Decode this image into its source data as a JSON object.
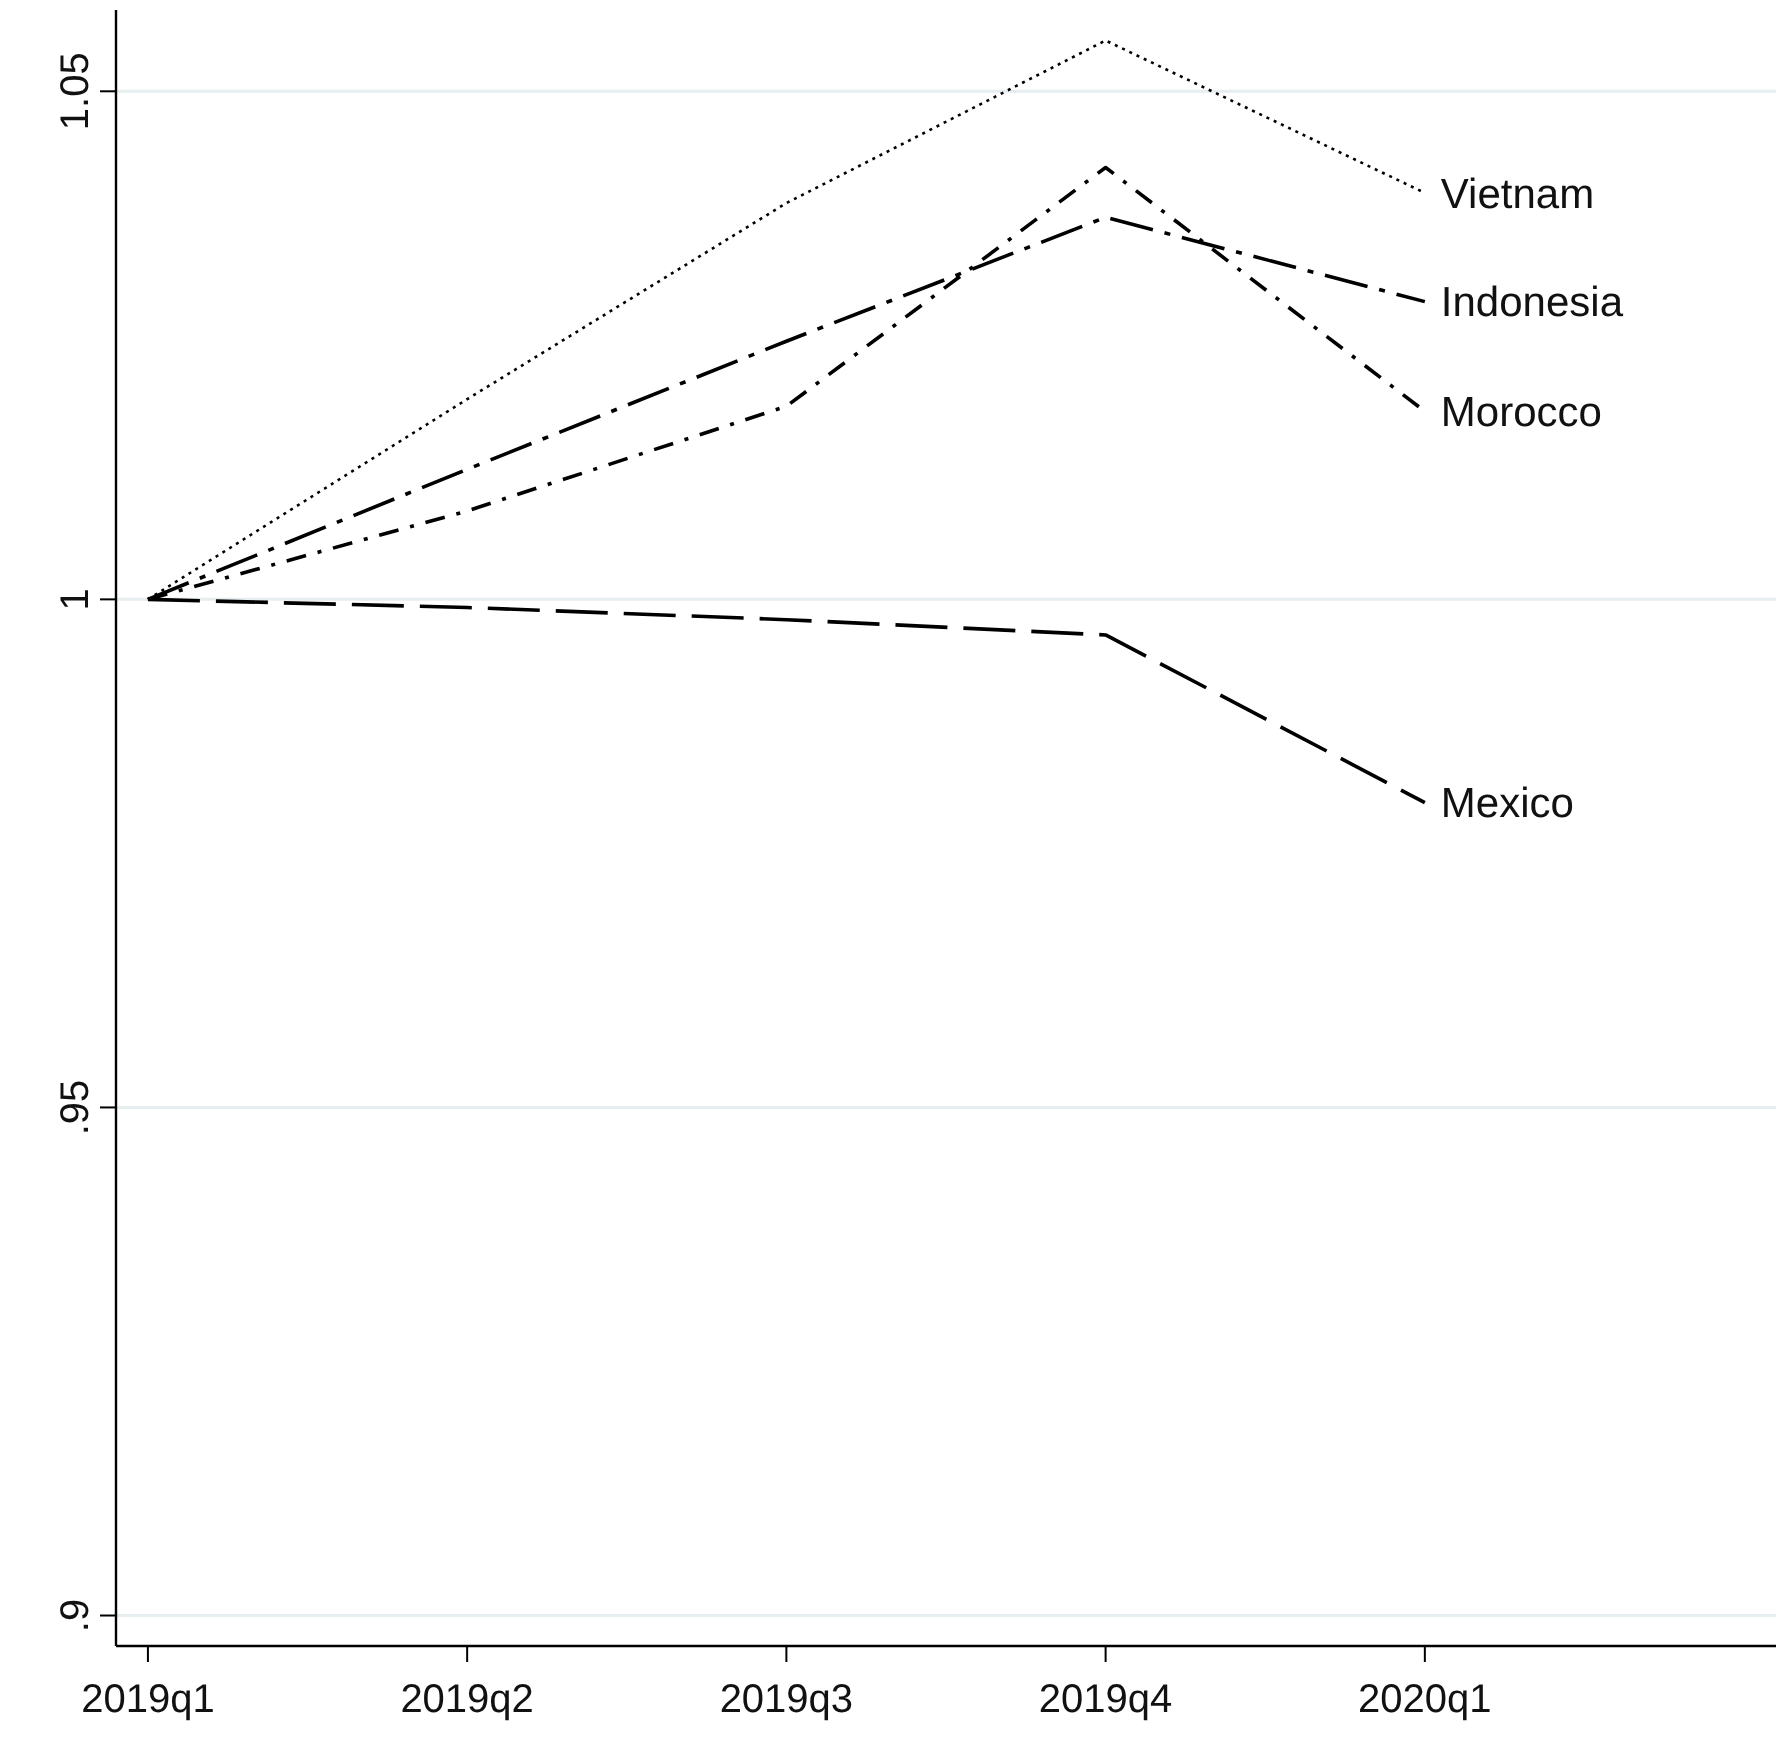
{
  "chart_data": {
    "type": "line",
    "categories": [
      "2019q1",
      "2019q2",
      "2019q3",
      "2019q4",
      "2020q1"
    ],
    "ylim": [
      0.897,
      1.058
    ],
    "yticks": [
      {
        "value": 0.9,
        "label": ".9"
      },
      {
        "value": 0.95,
        "label": ".95"
      },
      {
        "value": 1,
        "label": "1"
      },
      {
        "value": 1.05,
        "label": "1.05"
      }
    ],
    "grid": "y",
    "marker": "none",
    "series": [
      {
        "name": "Vietnam",
        "color": "#000000",
        "line_style": "dotted",
        "values": [
          1,
          1.0197,
          1.039,
          1.055,
          1.04
        ]
      },
      {
        "name": "Indonesia",
        "color": "#000000",
        "line_style": "dashed",
        "values": [
          1,
          1.0128,
          1.0254,
          1.0376,
          1.0293
        ]
      },
      {
        "name": "Morocco",
        "color": "#000000",
        "line_style": "dashed",
        "values": [
          1,
          1.0087,
          1.019,
          1.0425,
          1.0185
        ]
      },
      {
        "name": "Mexico",
        "color": "#000000",
        "line_style": "dashed",
        "values": [
          1,
          0.9992,
          0.998,
          0.9965,
          0.98
        ]
      }
    ]
  }
}
